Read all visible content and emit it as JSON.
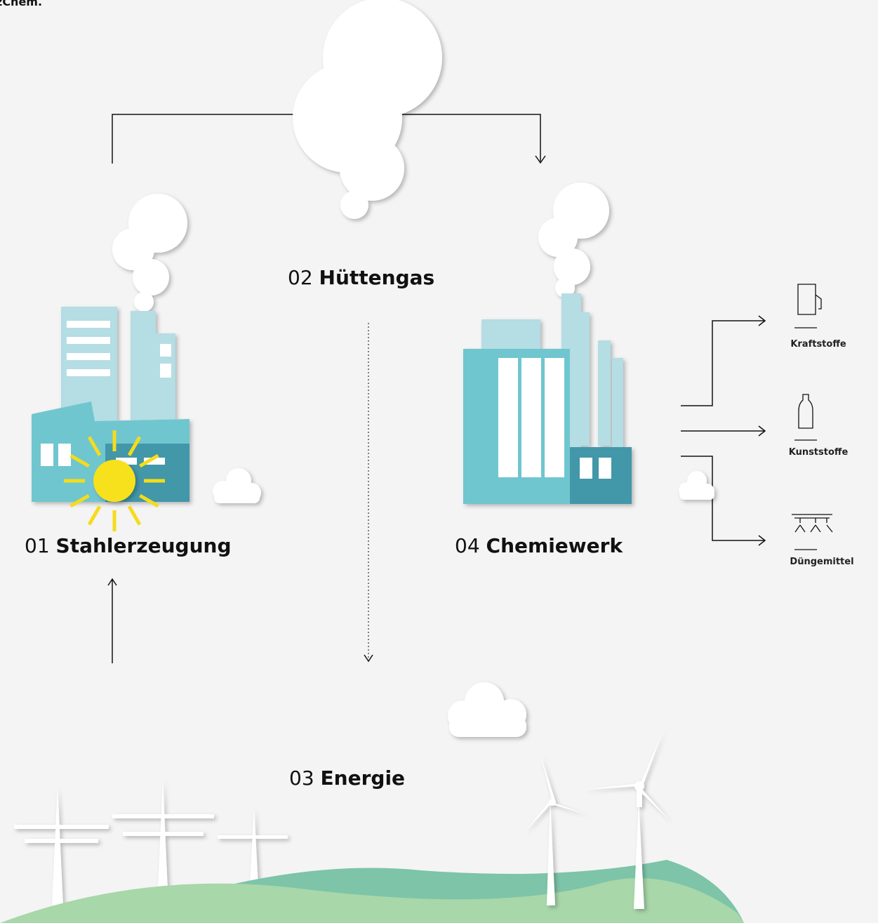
{
  "header": {
    "title": "zChem."
  },
  "steps": [
    {
      "number": "01",
      "label": "Stahlerzeugung"
    },
    {
      "number": "02",
      "label": "Hüttengas"
    },
    {
      "number": "03",
      "label": "Energie"
    },
    {
      "number": "04",
      "label": "Chemiewerk"
    }
  ],
  "products": [
    "Kraftstoffe",
    "Kunststoffe",
    "Düngemittel"
  ]
}
